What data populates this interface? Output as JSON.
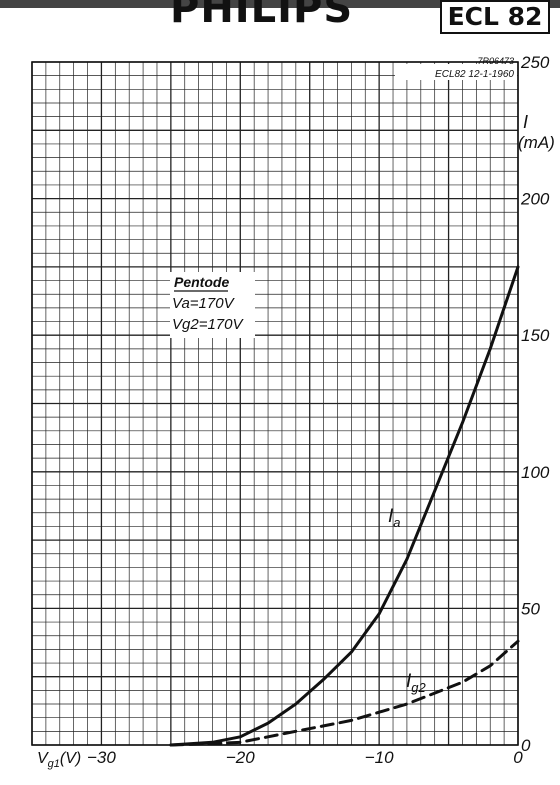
{
  "header": {
    "brand": "PHILIPS",
    "tube_type": "ECL 82"
  },
  "chart_data": {
    "type": "line",
    "drawing_ref": "7R06473",
    "drawing_info": "ECL82  12-1-1960",
    "xlabel": "Vg1(V)",
    "ylabel_symbol": "I",
    "ylabel_unit": "(mA)",
    "xlim": [
      -35,
      0
    ],
    "ylim": [
      0,
      250
    ],
    "x_ticks": [
      {
        "value": -30,
        "label": "−30"
      },
      {
        "value": -20,
        "label": "−20"
      },
      {
        "value": -10,
        "label": "−10"
      },
      {
        "value": 0,
        "label": "0"
      }
    ],
    "y_ticks": [
      {
        "value": 0,
        "label": "0"
      },
      {
        "value": 50,
        "label": "50"
      },
      {
        "value": 100,
        "label": "100"
      },
      {
        "value": 150,
        "label": "150"
      },
      {
        "value": 200,
        "label": "200"
      },
      {
        "value": 250,
        "label": "250"
      }
    ],
    "conditions": {
      "title": "Pentode",
      "line1": "Va=170V",
      "line2": "Vg2=170V"
    },
    "series": [
      {
        "name": "Ia",
        "style": "solid",
        "x": [
          -25,
          -22,
          -20,
          -18,
          -16,
          -14,
          -12,
          -10,
          -8,
          -6,
          -4,
          -2,
          0
        ],
        "y": [
          0,
          1,
          3,
          8,
          15,
          24,
          34,
          48,
          68,
          93,
          118,
          145,
          175
        ]
      },
      {
        "name": "Ig2",
        "style": "dashed",
        "x": [
          -25,
          -22,
          -20,
          -18,
          -16,
          -14,
          -12,
          -10,
          -8,
          -6,
          -4,
          -2,
          0
        ],
        "y": [
          0,
          0.5,
          1,
          3,
          5,
          7,
          9,
          12,
          15,
          19,
          23,
          29,
          38
        ]
      }
    ]
  }
}
